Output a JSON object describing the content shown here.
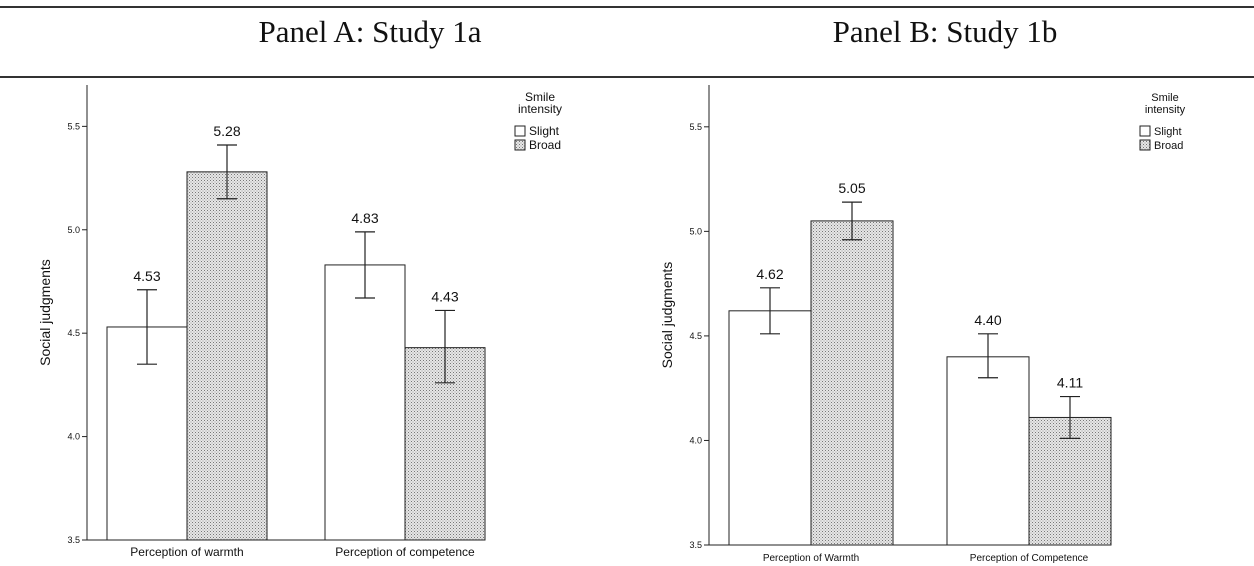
{
  "panels": {
    "a_title": "Panel A: Study 1a",
    "b_title": "Panel B: Study 1b"
  },
  "colors": {
    "slight": "#ffffff",
    "broad": "#d9d9d9",
    "line": "#222222"
  },
  "chart_data": [
    {
      "type": "bar",
      "title": "Panel A: Study 1a",
      "categories": [
        "Perception of warmth",
        "Perception of competence"
      ],
      "series": [
        {
          "name": "Slight",
          "values": [
            4.53,
            4.83
          ],
          "err_low": [
            4.35,
            4.67
          ],
          "err_high": [
            4.71,
            4.99
          ]
        },
        {
          "name": "Broad",
          "values": [
            5.28,
            4.43
          ],
          "err_low": [
            5.15,
            4.26
          ],
          "err_high": [
            5.41,
            4.61
          ]
        }
      ],
      "value_labels": [
        [
          "4.53",
          "4.83"
        ],
        [
          "5.28",
          "4.43"
        ]
      ],
      "ylabel": "Social judgments",
      "xlabel": "",
      "ylim": [
        3.5,
        5.7
      ],
      "yticks": [
        3.5,
        4.0,
        4.5,
        5.0,
        5.5
      ],
      "ytick_labels": [
        "3.5",
        "4.0",
        "4.5",
        "5.0",
        "5.5"
      ],
      "legend_title": "Smile intensity",
      "legend_title_lines": [
        "Smile",
        "intensity"
      ],
      "legend_position": "top-right",
      "grid": false
    },
    {
      "type": "bar",
      "title": "Panel B: Study 1b",
      "categories": [
        "Perception of Warmth",
        "Perception of Competence"
      ],
      "series": [
        {
          "name": "Slight",
          "values": [
            4.62,
            4.4
          ],
          "err_low": [
            4.51,
            4.3
          ],
          "err_high": [
            4.73,
            4.51
          ]
        },
        {
          "name": "Broad",
          "values": [
            5.05,
            4.11
          ],
          "err_low": [
            4.96,
            4.01
          ],
          "err_high": [
            5.14,
            4.21
          ]
        }
      ],
      "value_labels": [
        [
          "4.62",
          "4.40"
        ],
        [
          "5.05",
          "4.11"
        ]
      ],
      "ylabel": "Social judgments",
      "xlabel": "",
      "ylim": [
        3.5,
        5.7
      ],
      "yticks": [
        3.5,
        4.0,
        4.5,
        5.0,
        5.5
      ],
      "ytick_labels": [
        "3.5",
        "4.0",
        "4.5",
        "5.0",
        "5.5"
      ],
      "legend_title": "Smile intensity",
      "legend_title_lines": [
        "Smile",
        "intensity"
      ],
      "legend_position": "top-right",
      "grid": false
    }
  ]
}
